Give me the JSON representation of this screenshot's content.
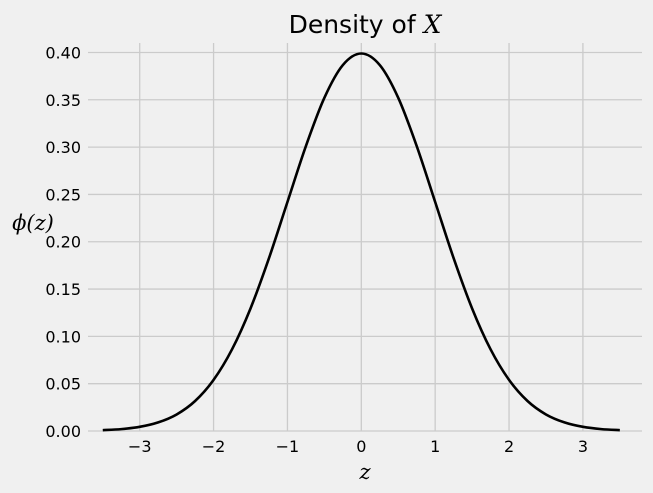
{
  "chart_data": {
    "type": "line",
    "title": "Density of X",
    "title_prefix": "Density of ",
    "title_var": "X",
    "xlabel": "z",
    "ylabel": "ϕ(z)",
    "xlim": [
      -3.7,
      3.8
    ],
    "ylim": [
      0.0,
      0.41
    ],
    "xticks": [
      -3,
      -2,
      -1,
      0,
      1,
      2,
      3
    ],
    "xtick_labels": [
      "−3",
      "−2",
      "−1",
      "0",
      "1",
      "2",
      "3"
    ],
    "yticks": [
      0.0,
      0.05,
      0.1,
      0.15,
      0.2,
      0.25,
      0.3,
      0.35,
      0.4
    ],
    "ytick_labels": [
      "0.00",
      "0.05",
      "0.10",
      "0.15",
      "0.20",
      "0.25",
      "0.30",
      "0.35",
      "0.40"
    ],
    "grid": true,
    "series": [
      {
        "color": "#000000",
        "x": [
          -3.5,
          -3.25,
          -3.0,
          -2.75,
          -2.5,
          -2.25,
          -2.0,
          -1.75,
          -1.5,
          -1.25,
          -1.0,
          -0.75,
          -0.5,
          -0.25,
          0.0,
          0.25,
          0.5,
          0.75,
          1.0,
          1.25,
          1.5,
          1.75,
          2.0,
          2.25,
          2.5,
          2.75,
          3.0,
          3.25,
          3.5
        ],
        "y": [
          0.0009,
          0.002,
          0.0044,
          0.0091,
          0.0175,
          0.0317,
          0.054,
          0.0863,
          0.1295,
          0.1826,
          0.242,
          0.3011,
          0.3521,
          0.3867,
          0.3989,
          0.3867,
          0.3521,
          0.3011,
          0.242,
          0.1826,
          0.1295,
          0.0863,
          0.054,
          0.0317,
          0.0175,
          0.0091,
          0.0044,
          0.002,
          0.0009
        ]
      }
    ]
  }
}
